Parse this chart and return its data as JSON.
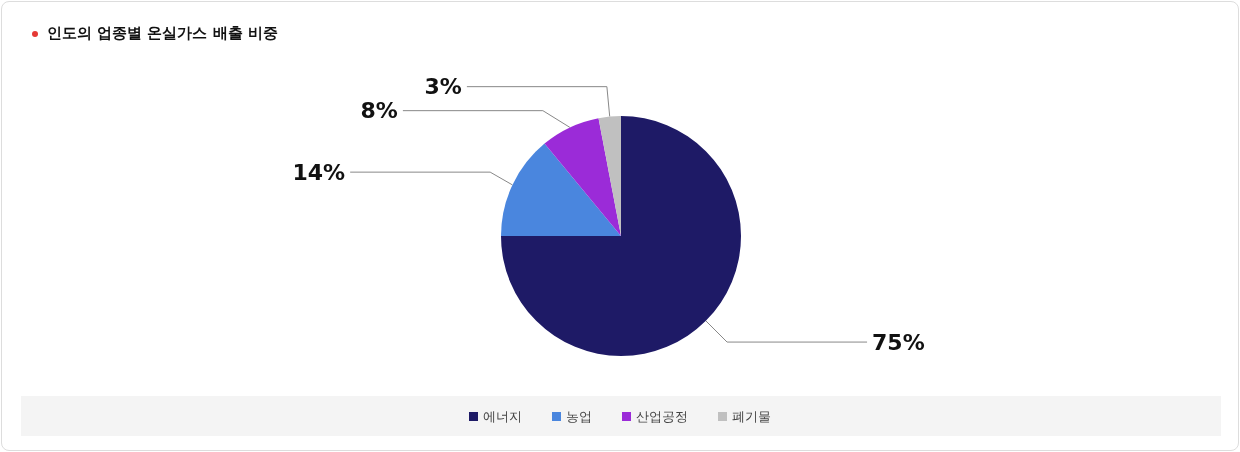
{
  "chart_data": {
    "type": "pie",
    "title": "인도의 업종별 온실가스 배출 비중",
    "categories": [
      "에너지",
      "농업",
      "산업공정",
      "폐기물"
    ],
    "values": [
      75,
      14,
      8,
      3
    ],
    "value_labels": [
      "75%",
      "14%",
      "8%",
      "3%"
    ],
    "colors": [
      "#1e1a66",
      "#4a86de",
      "#9b2bd8",
      "#c0c0c0"
    ],
    "legend": "bottom"
  }
}
